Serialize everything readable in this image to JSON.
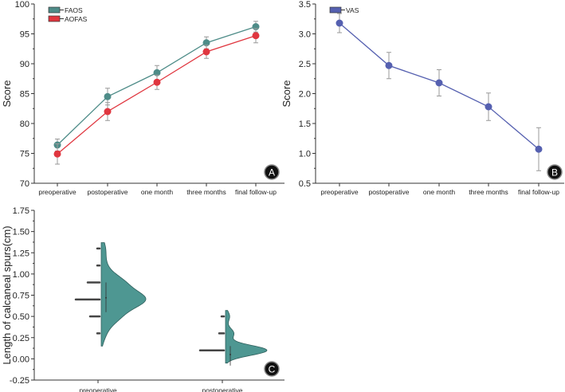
{
  "chart_data": [
    {
      "panel": "A",
      "type": "line",
      "ylabel": "Score",
      "ylim": [
        70,
        100
      ],
      "yticks": [
        "70",
        "75",
        "80",
        "85",
        "90",
        "95",
        "100"
      ],
      "categories": [
        "preoperative",
        "postoperative",
        "one month",
        "three months",
        "final follow-up"
      ],
      "legend_position": "top-left",
      "series": [
        {
          "name": "FAOS",
          "color": "#4e8c88",
          "values": [
            76.4,
            84.5,
            88.5,
            93.5,
            96.2
          ],
          "errors": [
            1.0,
            1.4,
            1.2,
            1.0,
            0.9
          ]
        },
        {
          "name": "AOFAS",
          "color": "#e0363f",
          "values": [
            74.9,
            82.0,
            86.9,
            92.0,
            94.7
          ],
          "errors": [
            1.7,
            1.5,
            1.2,
            1.1,
            1.2
          ]
        }
      ]
    },
    {
      "panel": "B",
      "type": "line",
      "ylabel": "Score",
      "ylim": [
        0.5,
        3.5
      ],
      "yticks": [
        "0.5",
        "1.0",
        "1.5",
        "2.0",
        "2.5",
        "3.0",
        "3.5"
      ],
      "categories": [
        "preoperative",
        "postoperative",
        "one month",
        "three months",
        "final follow-up"
      ],
      "legend_position": "top-left",
      "series": [
        {
          "name": "VAS",
          "color": "#5560b0",
          "values": [
            3.18,
            2.47,
            2.18,
            1.78,
            1.07
          ],
          "errors": [
            0.16,
            0.22,
            0.22,
            0.23,
            0.36
          ]
        }
      ]
    },
    {
      "panel": "C",
      "type": "violin",
      "ylabel": "Length of calcaneal spurs(cm)",
      "ylim": [
        -0.25,
        1.75
      ],
      "yticks": [
        "-0.25",
        "0.00",
        "0.25",
        "0.50",
        "0.75",
        "1.00",
        "1.25",
        "1.50",
        "1.75"
      ],
      "categories": [
        "preoperative",
        "postoperative"
      ],
      "color": "#4e9792",
      "groups": [
        {
          "name": "preoperative",
          "points": [
            [
              0.3,
              1
            ],
            [
              0.5,
              4
            ],
            [
              0.7,
              10
            ],
            [
              0.9,
              5
            ],
            [
              1.1,
              1
            ],
            [
              1.3,
              1
            ]
          ],
          "mean": 0.72,
          "range": [
            0.55,
            0.9
          ]
        },
        {
          "name": "postoperative",
          "points": [
            [
              0.1,
              10
            ],
            [
              0.3,
              2
            ],
            [
              0.5,
              1
            ]
          ],
          "mean": 0.05,
          "range": [
            -0.08,
            0.15
          ]
        }
      ]
    }
  ]
}
